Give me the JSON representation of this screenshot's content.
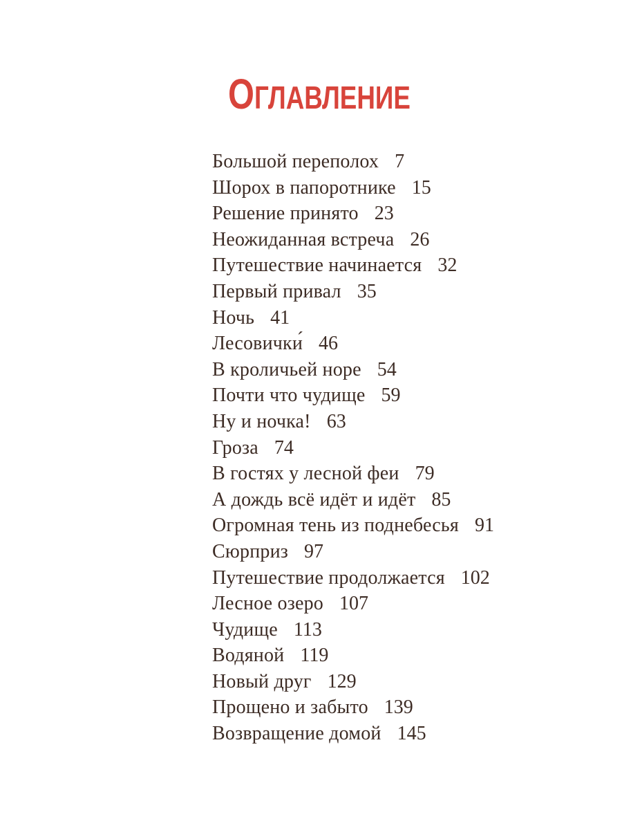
{
  "page": {
    "title": "Оглавление",
    "title_color": "#d8443b",
    "text_color": "#3d2c25",
    "background_color": "#ffffff"
  },
  "toc": {
    "entries": [
      {
        "label": "Большой переполох",
        "page": "7"
      },
      {
        "label": "Шорох в папоротнике",
        "page": "15"
      },
      {
        "label": "Решение принято",
        "page": "23"
      },
      {
        "label": "Неожиданная встреча",
        "page": "26"
      },
      {
        "label": "Путешествие начинается",
        "page": "32"
      },
      {
        "label": "Первый привал",
        "page": "35"
      },
      {
        "label": "Ночь",
        "page": "41"
      },
      {
        "label": "Лесовички́",
        "page": "46"
      },
      {
        "label": "В кроличьей норе",
        "page": "54"
      },
      {
        "label": "Почти что чудище",
        "page": "59"
      },
      {
        "label": "Ну и ночка!",
        "page": "63"
      },
      {
        "label": "Гроза",
        "page": "74"
      },
      {
        "label": "В гостях у лесной феи",
        "page": "79"
      },
      {
        "label": "А дождь всё идёт и идёт",
        "page": "85"
      },
      {
        "label": "Огромная тень из поднебесья",
        "page": "91"
      },
      {
        "label": "Сюрприз",
        "page": "97"
      },
      {
        "label": "Путешествие продолжается",
        "page": "102"
      },
      {
        "label": "Лесное озеро",
        "page": "107"
      },
      {
        "label": "Чудище",
        "page": "113"
      },
      {
        "label": "Водяной",
        "page": "119"
      },
      {
        "label": "Новый друг",
        "page": "129"
      },
      {
        "label": "Прощено и забыто",
        "page": "139"
      },
      {
        "label": "Возвращение домой",
        "page": "145"
      }
    ]
  }
}
